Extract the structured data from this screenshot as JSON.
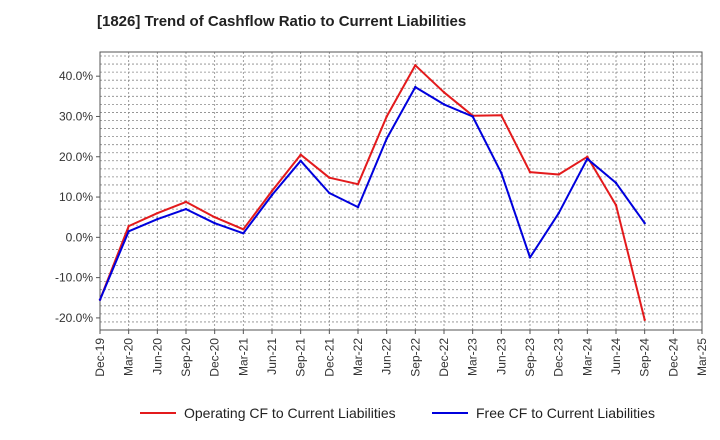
{
  "chart_data": {
    "type": "line",
    "title": "[1826]  Trend of Cashflow Ratio to Current Liabilities",
    "xlabel": "",
    "ylabel": "",
    "x": [
      "Dec-19",
      "Mar-20",
      "Jun-20",
      "Sep-20",
      "Dec-20",
      "Mar-21",
      "Jun-21",
      "Sep-21",
      "Dec-21",
      "Mar-22",
      "Jun-22",
      "Sep-22",
      "Dec-22",
      "Mar-23",
      "Jun-23",
      "Sep-23",
      "Dec-23",
      "Mar-24",
      "Jun-24",
      "Sep-24",
      "Dec-24",
      "Mar-25"
    ],
    "ylim": [
      -23,
      46
    ],
    "yticks": [
      -20,
      -10,
      0,
      10,
      20,
      30,
      40
    ],
    "ytick_labels": [
      "-20.0%",
      "-10.0%",
      "0.0%",
      "10.0%",
      "20.0%",
      "30.0%",
      "40.0%"
    ],
    "grid": true,
    "legend_position": "bottom",
    "series": [
      {
        "name": "Operating CF to Current Liabilities",
        "color": "#e31a1c",
        "values": [
          -15.5,
          2.8,
          6.0,
          8.8,
          5.0,
          2.0,
          11.5,
          20.5,
          14.8,
          13.2,
          30.0,
          42.7,
          36.0,
          30.2,
          30.3,
          16.2,
          15.6,
          20.0,
          8.0,
          -20.5,
          null,
          null
        ]
      },
      {
        "name": "Free CF to Current Liabilities",
        "color": "#0000dd",
        "values": [
          -15.5,
          1.5,
          4.5,
          7.0,
          3.5,
          1.0,
          10.5,
          19.0,
          11.0,
          7.5,
          24.5,
          37.3,
          33.0,
          30.0,
          16.0,
          -5.0,
          6.0,
          19.5,
          13.5,
          3.5,
          null,
          null
        ]
      }
    ]
  }
}
